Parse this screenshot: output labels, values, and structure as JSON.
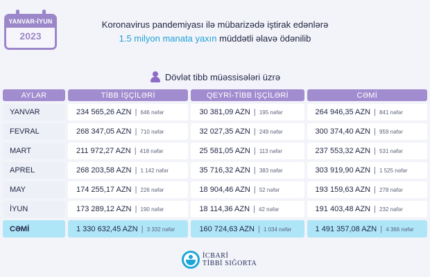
{
  "badge": {
    "period": "YANVAR-İYUN",
    "year": "2023"
  },
  "header": {
    "line1": "Koronavirus pandemiyası ilə mübarizədə iştirak edənlərə",
    "line2_highlight": "1.5 milyon manata yaxın",
    "line2_rest": " müddətli əlavə ödənilib"
  },
  "section_title": "Dövlət tibb müəssisələri üzrə",
  "table": {
    "headers": [
      "AYLAR",
      "TİBB İŞÇİLƏRİ",
      "QEYRİ-TİBB İŞÇİLƏRİ",
      "CƏMİ"
    ],
    "rows": [
      {
        "month": "YANVAR",
        "cells": [
          {
            "amount": "234 565,26 AZN",
            "count": "646 nəfər"
          },
          {
            "amount": "30 381,09 AZN",
            "count": "195 nəfər"
          },
          {
            "amount": "264 946,35 AZN",
            "count": "841 nəfər"
          }
        ]
      },
      {
        "month": "FEVRAL",
        "cells": [
          {
            "amount": "268 347,05 AZN",
            "count": "710 nəfər"
          },
          {
            "amount": "32 027,35 AZN",
            "count": "249 nəfər"
          },
          {
            "amount": "300 374,40 AZN",
            "count": "959 nəfər"
          }
        ]
      },
      {
        "month": "MART",
        "cells": [
          {
            "amount": "211 972,27 AZN",
            "count": "418 nəfər"
          },
          {
            "amount": "25 581,05 AZN",
            "count": "113 nəfər"
          },
          {
            "amount": "237 553,32 AZN",
            "count": "531 nəfər"
          }
        ]
      },
      {
        "month": "APREL",
        "cells": [
          {
            "amount": "268 203,58 AZN",
            "count": "1 142 nəfər"
          },
          {
            "amount": "35 716,32 AZN",
            "count": "383 nəfər"
          },
          {
            "amount": "303 919,90 AZN",
            "count": "1 525 nəfər"
          }
        ]
      },
      {
        "month": "MAY",
        "cells": [
          {
            "amount": "174 255,17 AZN",
            "count": "226 nəfər"
          },
          {
            "amount": "18 904,46 AZN",
            "count": "52 nəfər"
          },
          {
            "amount": "193 159,63 AZN",
            "count": "278 nəfər"
          }
        ]
      },
      {
        "month": "İYUN",
        "cells": [
          {
            "amount": "173 289,12 AZN",
            "count": "190 nəfər"
          },
          {
            "amount": "18 114,36 AZN",
            "count": "42 nəfər"
          },
          {
            "amount": "191 403,48 AZN",
            "count": "232 nəfər"
          }
        ]
      }
    ],
    "total": {
      "month": "CƏMİ",
      "cells": [
        {
          "amount": "1 330 632,45 AZN",
          "count": "3 332 nəfər"
        },
        {
          "amount": "160 724,63 AZN",
          "count": "1 034 nəfər"
        },
        {
          "amount": "1 491 357,08 AZN",
          "count": "4 366 nəfər"
        }
      ]
    }
  },
  "logo": {
    "line1": "İCBARİ",
    "line2": "TİBBİ SIĞORTA"
  },
  "icons": [
    "calendar-icon",
    "person-icon",
    "insurance-logo-icon"
  ],
  "colors": {
    "header_purple": "#a18ccf",
    "total_cyan": "#aee6f8",
    "highlight_blue": "#1fa0d8"
  }
}
